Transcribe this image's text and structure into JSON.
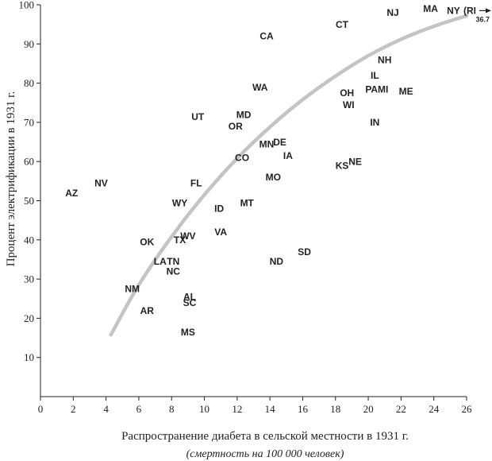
{
  "chart_data": {
    "type": "scatter",
    "xlabel": "Распространение диабета в сельской местности в 1931 г.",
    "xlabel_sub": "(смертность на 100 000 человек)",
    "ylabel": "Процент электрификации в 1931 г.",
    "xlim": [
      0,
      26
    ],
    "ylim": [
      0,
      100
    ],
    "xticks": [
      0,
      2,
      4,
      6,
      8,
      10,
      12,
      14,
      16,
      18,
      20,
      22,
      24,
      26
    ],
    "yticks": [
      10,
      20,
      30,
      40,
      50,
      60,
      70,
      80,
      90,
      100
    ],
    "points": [
      {
        "label": "AZ",
        "x": 1.9,
        "y": 52
      },
      {
        "label": "NV",
        "x": 3.7,
        "y": 54.5
      },
      {
        "label": "CA",
        "x": 13.8,
        "y": 92
      },
      {
        "label": "CT",
        "x": 18.4,
        "y": 95
      },
      {
        "label": "NJ",
        "x": 21.5,
        "y": 98
      },
      {
        "label": "MA",
        "x": 23.8,
        "y": 99
      },
      {
        "label": "NY",
        "x": 25.2,
        "y": 98.5
      },
      {
        "label": "NH",
        "x": 21.0,
        "y": 86
      },
      {
        "label": "IL",
        "x": 20.4,
        "y": 82
      },
      {
        "label": "PA",
        "x": 20.2,
        "y": 78.5
      },
      {
        "label": "MI",
        "x": 20.9,
        "y": 78.5
      },
      {
        "label": "ME",
        "x": 22.3,
        "y": 78
      },
      {
        "label": "OH",
        "x": 18.7,
        "y": 77.5
      },
      {
        "label": "WI",
        "x": 18.8,
        "y": 74.5
      },
      {
        "label": "IN",
        "x": 20.4,
        "y": 70
      },
      {
        "label": "WA",
        "x": 13.4,
        "y": 79
      },
      {
        "label": "UT",
        "x": 9.6,
        "y": 71.5
      },
      {
        "label": "MD",
        "x": 12.4,
        "y": 72
      },
      {
        "label": "OR",
        "x": 11.9,
        "y": 69
      },
      {
        "label": "MN",
        "x": 13.8,
        "y": 64.5
      },
      {
        "label": "DE",
        "x": 14.6,
        "y": 65
      },
      {
        "label": "IA",
        "x": 15.1,
        "y": 61.5
      },
      {
        "label": "CO",
        "x": 12.3,
        "y": 61
      },
      {
        "label": "KS",
        "x": 18.4,
        "y": 59
      },
      {
        "label": "NE",
        "x": 19.2,
        "y": 60
      },
      {
        "label": "MO",
        "x": 14.2,
        "y": 56
      },
      {
        "label": "FL",
        "x": 9.5,
        "y": 54.5
      },
      {
        "label": "WY",
        "x": 8.5,
        "y": 49.5
      },
      {
        "label": "ID",
        "x": 10.9,
        "y": 48
      },
      {
        "label": "MT",
        "x": 12.6,
        "y": 49.5
      },
      {
        "label": "OK",
        "x": 6.5,
        "y": 39.5
      },
      {
        "label": "TX",
        "x": 8.5,
        "y": 40
      },
      {
        "label": "WV",
        "x": 9.0,
        "y": 41
      },
      {
        "label": "VA",
        "x": 11.0,
        "y": 42
      },
      {
        "label": "SD",
        "x": 16.1,
        "y": 37
      },
      {
        "label": "ND",
        "x": 14.4,
        "y": 34.5
      },
      {
        "label": "LA",
        "x": 7.3,
        "y": 34.5
      },
      {
        "label": "TN",
        "x": 8.1,
        "y": 34.5
      },
      {
        "label": "NC",
        "x": 8.1,
        "y": 32
      },
      {
        "label": "NM",
        "x": 5.6,
        "y": 27.5
      },
      {
        "label": "AL",
        "x": 9.1,
        "y": 25.5
      },
      {
        "label": "SC",
        "x": 9.1,
        "y": 24
      },
      {
        "label": "AR",
        "x": 6.5,
        "y": 22
      },
      {
        "label": "MS",
        "x": 9.0,
        "y": 16.5
      }
    ],
    "ri_label": "(RI",
    "ri_value": "36.7",
    "trend_curve": [
      [
        4.3,
        15.8
      ],
      [
        6,
        28.5
      ],
      [
        8,
        40.8
      ],
      [
        10,
        51.5
      ],
      [
        12,
        60.8
      ],
      [
        14,
        68.8
      ],
      [
        16,
        75.8
      ],
      [
        18,
        81.8
      ],
      [
        20,
        87.0
      ],
      [
        22,
        91.2
      ],
      [
        24,
        94.5
      ],
      [
        26,
        97.2
      ]
    ]
  }
}
